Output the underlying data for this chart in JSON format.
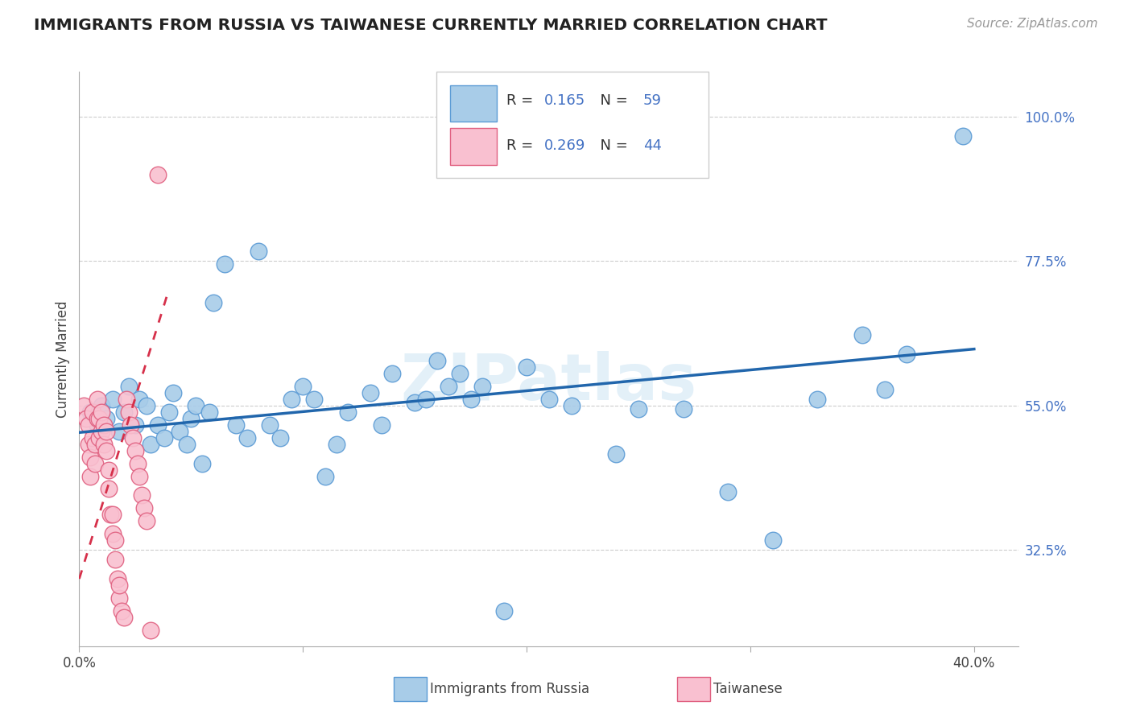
{
  "title": "IMMIGRANTS FROM RUSSIA VS TAIWANESE CURRENTLY MARRIED CORRELATION CHART",
  "source_text": "Source: ZipAtlas.com",
  "ylabel": "Currently Married",
  "y_label_right_ticks": [
    "100.0%",
    "77.5%",
    "55.0%",
    "32.5%"
  ],
  "y_label_right_values": [
    1.0,
    0.775,
    0.55,
    0.325
  ],
  "x_tick_labels": [
    "0.0%",
    "",
    "",
    "",
    "40.0%"
  ],
  "x_tick_values": [
    0.0,
    0.1,
    0.2,
    0.3,
    0.4
  ],
  "xlim": [
    0.0,
    0.42
  ],
  "ylim": [
    0.175,
    1.07
  ],
  "blue_R": "0.165",
  "blue_N": "59",
  "pink_R": "0.269",
  "pink_N": "44",
  "legend_label_blue": "Immigrants from Russia",
  "legend_label_pink": "Taiwanese",
  "watermark": "ZIPatlas",
  "blue_color": "#a8cce8",
  "blue_edge_color": "#5b9bd5",
  "pink_color": "#f9c0d0",
  "pink_edge_color": "#e06080",
  "trend_blue_color": "#2166ac",
  "trend_pink_color": "#d6304a",
  "grid_color": "#cccccc",
  "blue_scatter_x": [
    0.005,
    0.008,
    0.01,
    0.012,
    0.015,
    0.018,
    0.02,
    0.022,
    0.025,
    0.027,
    0.03,
    0.032,
    0.035,
    0.038,
    0.04,
    0.042,
    0.045,
    0.048,
    0.05,
    0.052,
    0.055,
    0.058,
    0.06,
    0.065,
    0.07,
    0.075,
    0.08,
    0.085,
    0.09,
    0.095,
    0.1,
    0.105,
    0.11,
    0.115,
    0.12,
    0.13,
    0.135,
    0.14,
    0.15,
    0.155,
    0.16,
    0.165,
    0.17,
    0.175,
    0.18,
    0.19,
    0.2,
    0.21,
    0.22,
    0.24,
    0.25,
    0.27,
    0.29,
    0.31,
    0.33,
    0.35,
    0.36,
    0.37,
    0.395
  ],
  "blue_scatter_y": [
    0.54,
    0.52,
    0.55,
    0.53,
    0.56,
    0.51,
    0.54,
    0.58,
    0.52,
    0.56,
    0.55,
    0.49,
    0.52,
    0.5,
    0.54,
    0.57,
    0.51,
    0.49,
    0.53,
    0.55,
    0.46,
    0.54,
    0.71,
    0.77,
    0.52,
    0.5,
    0.79,
    0.52,
    0.5,
    0.56,
    0.58,
    0.56,
    0.44,
    0.49,
    0.54,
    0.57,
    0.52,
    0.6,
    0.555,
    0.56,
    0.62,
    0.58,
    0.6,
    0.56,
    0.58,
    0.23,
    0.61,
    0.56,
    0.55,
    0.475,
    0.545,
    0.545,
    0.415,
    0.34,
    0.56,
    0.66,
    0.575,
    0.63,
    0.97
  ],
  "pink_scatter_x": [
    0.002,
    0.003,
    0.004,
    0.004,
    0.005,
    0.005,
    0.006,
    0.006,
    0.007,
    0.007,
    0.008,
    0.008,
    0.009,
    0.009,
    0.01,
    0.01,
    0.011,
    0.011,
    0.012,
    0.012,
    0.013,
    0.013,
    0.014,
    0.015,
    0.015,
    0.016,
    0.016,
    0.017,
    0.018,
    0.018,
    0.019,
    0.02,
    0.021,
    0.022,
    0.023,
    0.024,
    0.025,
    0.026,
    0.027,
    0.028,
    0.029,
    0.03,
    0.032,
    0.035
  ],
  "pink_scatter_y": [
    0.55,
    0.53,
    0.49,
    0.52,
    0.44,
    0.47,
    0.5,
    0.54,
    0.46,
    0.49,
    0.53,
    0.56,
    0.5,
    0.53,
    0.51,
    0.54,
    0.49,
    0.52,
    0.48,
    0.51,
    0.42,
    0.45,
    0.38,
    0.35,
    0.38,
    0.31,
    0.34,
    0.28,
    0.25,
    0.27,
    0.23,
    0.22,
    0.56,
    0.54,
    0.52,
    0.5,
    0.48,
    0.46,
    0.44,
    0.41,
    0.39,
    0.37,
    0.2,
    0.91
  ],
  "blue_trend_x": [
    0.0,
    0.4
  ],
  "blue_trend_y": [
    0.508,
    0.638
  ],
  "pink_trend_x": [
    0.0,
    0.04
  ],
  "pink_trend_y": [
    0.28,
    0.73
  ]
}
